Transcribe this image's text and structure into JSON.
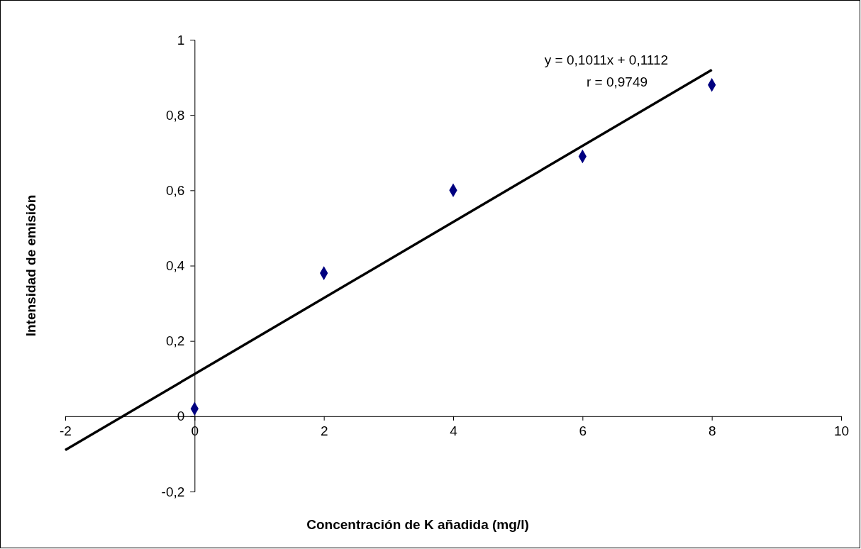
{
  "chart_data": {
    "type": "scatter",
    "xlabel": "Concentración de K añadida (mg/l)",
    "ylabel": "Intensidad de emisión",
    "xlim": [
      -2,
      10
    ],
    "ylim": [
      -0.2,
      1
    ],
    "xticks": [
      -2,
      0,
      2,
      4,
      6,
      8,
      10
    ],
    "yticks": [
      {
        "value": -0.2,
        "label": "-0,2"
      },
      0,
      {
        "value": 0.2,
        "label": "0,2"
      },
      {
        "value": 0.4,
        "label": "0,4"
      },
      {
        "value": 0.6,
        "label": "0,6"
      },
      {
        "value": 0.8,
        "label": "0,8"
      },
      1
    ],
    "grid": false,
    "annotations": [
      "y = 0,1011x + 0,1112",
      "r = 0,9749"
    ],
    "series": [
      {
        "marker": "diamond",
        "color": "#000080",
        "x": [
          0,
          2,
          4,
          6,
          8
        ],
        "values": [
          0.02,
          0.38,
          0.6,
          0.69,
          0.88
        ]
      },
      {
        "type": "line",
        "marker": "none",
        "color": "#000000",
        "line_style": "solid",
        "x": [
          -2,
          8
        ],
        "values": [
          -0.09,
          0.92
        ]
      }
    ]
  }
}
